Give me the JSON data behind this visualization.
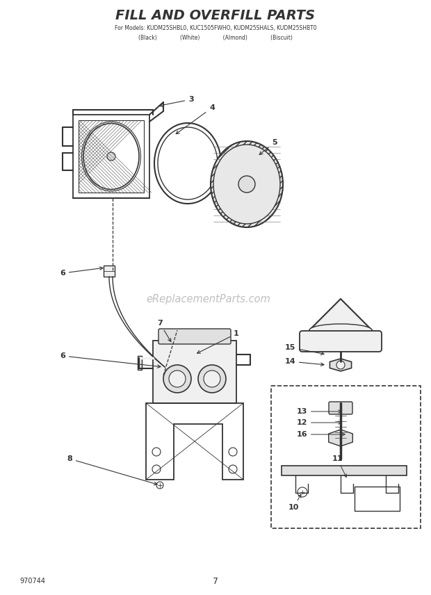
{
  "title": "FILL AND OVERFILL PARTS",
  "subtitle_line1": "For Models: KUDM25SHBL0, KUC1505FWHO, KUDM25SHALS, KUDM25SHBT0",
  "subtitle_line2": "(Black)              (White)              (Almond)              (Biscuit)",
  "page_number": "7",
  "diagram_number": "970744",
  "watermark": "eReplacementParts.com",
  "bg_color": "#ffffff",
  "line_color": "#333333",
  "gray_fill": "#d8d8d8",
  "light_fill": "#f0f0f0",
  "mid_fill": "#e0e0e0"
}
